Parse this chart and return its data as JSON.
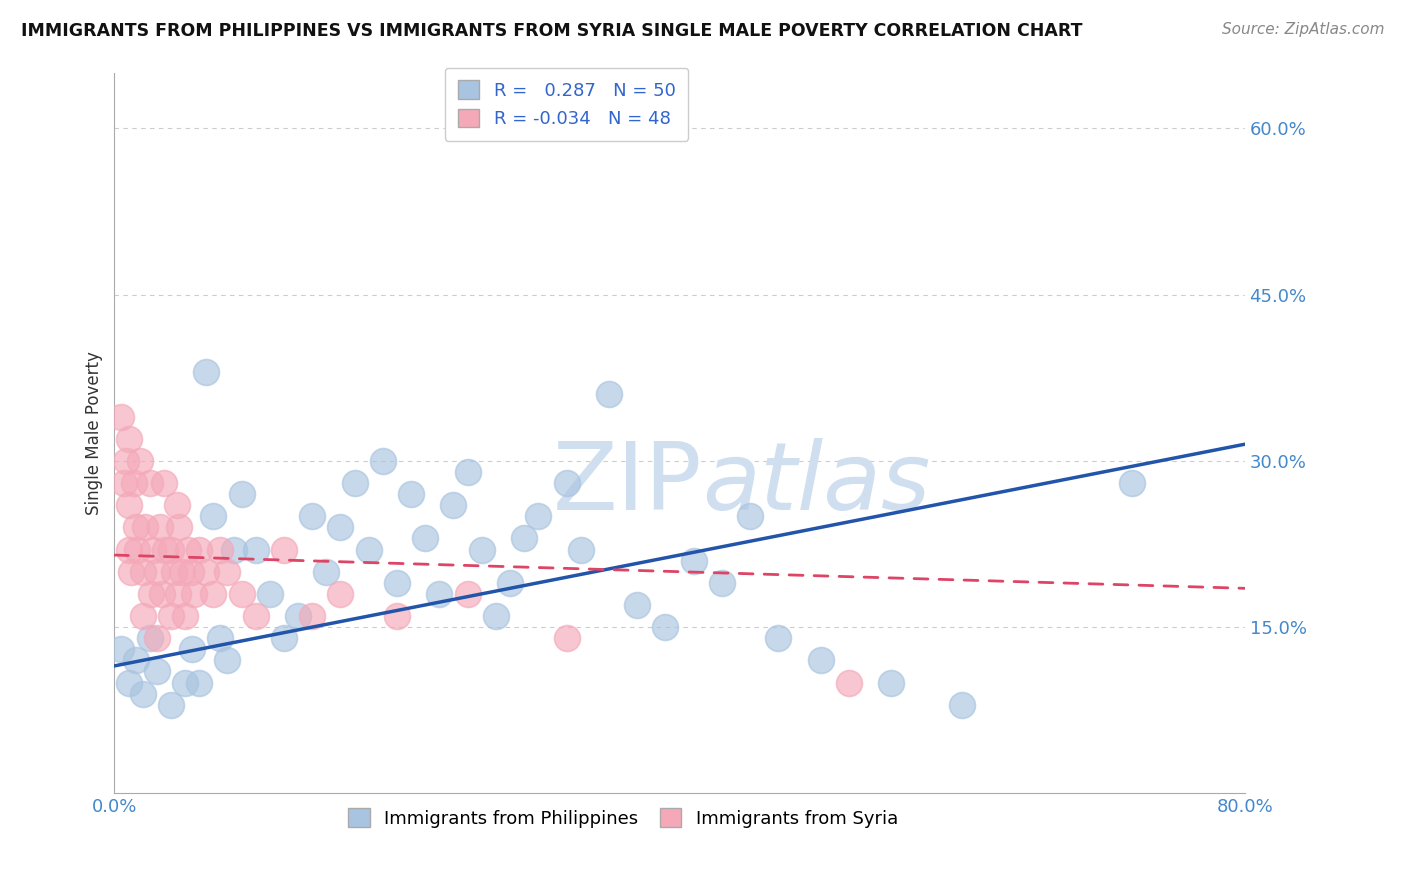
{
  "title": "IMMIGRANTS FROM PHILIPPINES VS IMMIGRANTS FROM SYRIA SINGLE MALE POVERTY CORRELATION CHART",
  "source": "Source: ZipAtlas.com",
  "ylabel": "Single Male Poverty",
  "xlim": [
    0.0,
    0.8
  ],
  "ylim": [
    0.0,
    0.65
  ],
  "yticks": [
    0.15,
    0.3,
    0.45,
    0.6
  ],
  "ytick_labels": [
    "15.0%",
    "30.0%",
    "45.0%",
    "60.0%"
  ],
  "xticks": [
    0.0,
    0.1,
    0.2,
    0.3,
    0.4,
    0.5,
    0.6,
    0.7,
    0.8
  ],
  "xtick_labels": [
    "0.0%",
    "",
    "",
    "",
    "",
    "",
    "",
    "",
    "80.0%"
  ],
  "blue_R": 0.287,
  "blue_N": 50,
  "pink_R": -0.034,
  "pink_N": 48,
  "blue_color": "#a8c4e0",
  "pink_color": "#f4a8b8",
  "trend_blue_color": "#2255aa",
  "trend_pink_color": "#dd4466",
  "watermark_color": "#d0dff0",
  "blue_legend_label": "Immigrants from Philippines",
  "pink_legend_label": "Immigrants from Syria",
  "blue_dots_x": [
    0.005,
    0.01,
    0.015,
    0.02,
    0.025,
    0.03,
    0.04,
    0.05,
    0.055,
    0.06,
    0.065,
    0.07,
    0.075,
    0.08,
    0.085,
    0.09,
    0.1,
    0.11,
    0.12,
    0.13,
    0.14,
    0.15,
    0.16,
    0.17,
    0.18,
    0.19,
    0.2,
    0.21,
    0.22,
    0.23,
    0.24,
    0.25,
    0.26,
    0.27,
    0.28,
    0.29,
    0.3,
    0.32,
    0.33,
    0.35,
    0.37,
    0.39,
    0.41,
    0.43,
    0.45,
    0.47,
    0.5,
    0.55,
    0.6,
    0.72
  ],
  "blue_dots_y": [
    0.13,
    0.1,
    0.12,
    0.09,
    0.14,
    0.11,
    0.08,
    0.1,
    0.13,
    0.1,
    0.38,
    0.25,
    0.14,
    0.12,
    0.22,
    0.27,
    0.22,
    0.18,
    0.14,
    0.16,
    0.25,
    0.2,
    0.24,
    0.28,
    0.22,
    0.3,
    0.19,
    0.27,
    0.23,
    0.18,
    0.26,
    0.29,
    0.22,
    0.16,
    0.19,
    0.23,
    0.25,
    0.28,
    0.22,
    0.36,
    0.17,
    0.15,
    0.21,
    0.19,
    0.25,
    0.14,
    0.12,
    0.1,
    0.08,
    0.28
  ],
  "pink_dots_x": [
    0.005,
    0.007,
    0.008,
    0.01,
    0.01,
    0.01,
    0.012,
    0.014,
    0.015,
    0.016,
    0.018,
    0.02,
    0.02,
    0.022,
    0.025,
    0.026,
    0.027,
    0.03,
    0.03,
    0.032,
    0.034,
    0.035,
    0.036,
    0.04,
    0.04,
    0.042,
    0.044,
    0.045,
    0.046,
    0.048,
    0.05,
    0.052,
    0.054,
    0.056,
    0.06,
    0.065,
    0.07,
    0.075,
    0.08,
    0.09,
    0.1,
    0.12,
    0.14,
    0.16,
    0.2,
    0.25,
    0.32,
    0.52
  ],
  "pink_dots_y": [
    0.34,
    0.28,
    0.3,
    0.22,
    0.26,
    0.32,
    0.2,
    0.28,
    0.24,
    0.22,
    0.3,
    0.16,
    0.2,
    0.24,
    0.28,
    0.18,
    0.22,
    0.14,
    0.2,
    0.24,
    0.18,
    0.28,
    0.22,
    0.16,
    0.22,
    0.2,
    0.26,
    0.18,
    0.24,
    0.2,
    0.16,
    0.22,
    0.2,
    0.18,
    0.22,
    0.2,
    0.18,
    0.22,
    0.2,
    0.18,
    0.16,
    0.22,
    0.16,
    0.18,
    0.16,
    0.18,
    0.14,
    0.1
  ],
  "blue_trend_x0": 0.0,
  "blue_trend_y0": 0.115,
  "blue_trend_x1": 0.8,
  "blue_trend_y1": 0.315,
  "pink_trend_x0": 0.0,
  "pink_trend_y0": 0.215,
  "pink_trend_x1": 0.8,
  "pink_trend_y1": 0.185
}
